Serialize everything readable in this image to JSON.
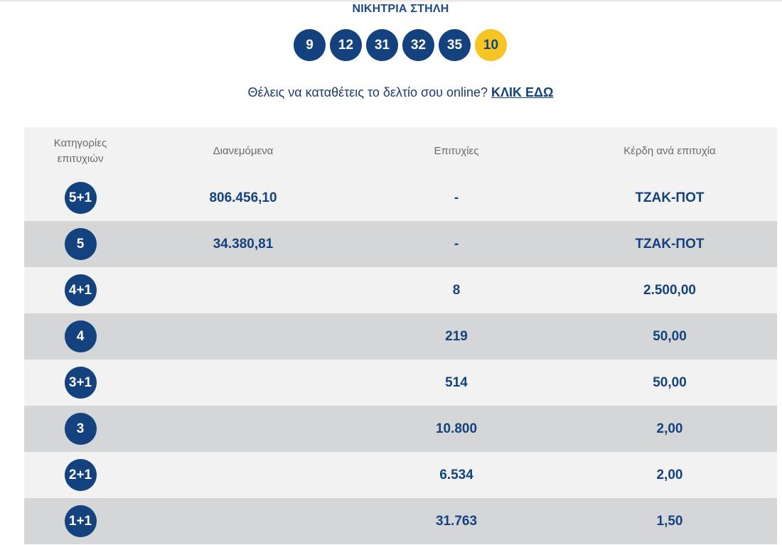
{
  "title": "ΝΙΚΗΤΡΙΑ ΣΤΗΛΗ",
  "winning_numbers": [
    "9",
    "12",
    "31",
    "32",
    "35"
  ],
  "joker_number": "10",
  "online_prompt": {
    "text": "Θέλεις να καταθέτεις το δελτίο σου online?",
    "link": "ΚΛΙΚ ΕΔΩ"
  },
  "table": {
    "headers": {
      "category_line1": "Κατηγορίες",
      "category_line2": "επιτυχιών",
      "distributed": "Διανεμόμενα",
      "winners": "Επιτυχίες",
      "prize": "Κέρδη ανά επιτυχία"
    },
    "rows": [
      {
        "category": "5+1",
        "distributed": "806.456,10",
        "winners": "-",
        "prize": "ΤΖΑΚ-ΠΟΤ"
      },
      {
        "category": "5",
        "distributed": "34.380,81",
        "winners": "-",
        "prize": "ΤΖΑΚ-ΠΟΤ"
      },
      {
        "category": "4+1",
        "distributed": "",
        "winners": "8",
        "prize": "2.500,00"
      },
      {
        "category": "4",
        "distributed": "",
        "winners": "219",
        "prize": "50,00"
      },
      {
        "category": "3+1",
        "distributed": "",
        "winners": "514",
        "prize": "50,00"
      },
      {
        "category": "3",
        "distributed": "",
        "winners": "10.800",
        "prize": "2,00"
      },
      {
        "category": "2+1",
        "distributed": "",
        "winners": "6.534",
        "prize": "2,00"
      },
      {
        "category": "1+1",
        "distributed": "",
        "winners": "31.763",
        "prize": "1,50"
      }
    ]
  },
  "colors": {
    "primary_blue": "#13427e",
    "joker_yellow": "#f7c523",
    "row_light": "#f2f2f2",
    "row_dark": "#d5d6d8"
  }
}
